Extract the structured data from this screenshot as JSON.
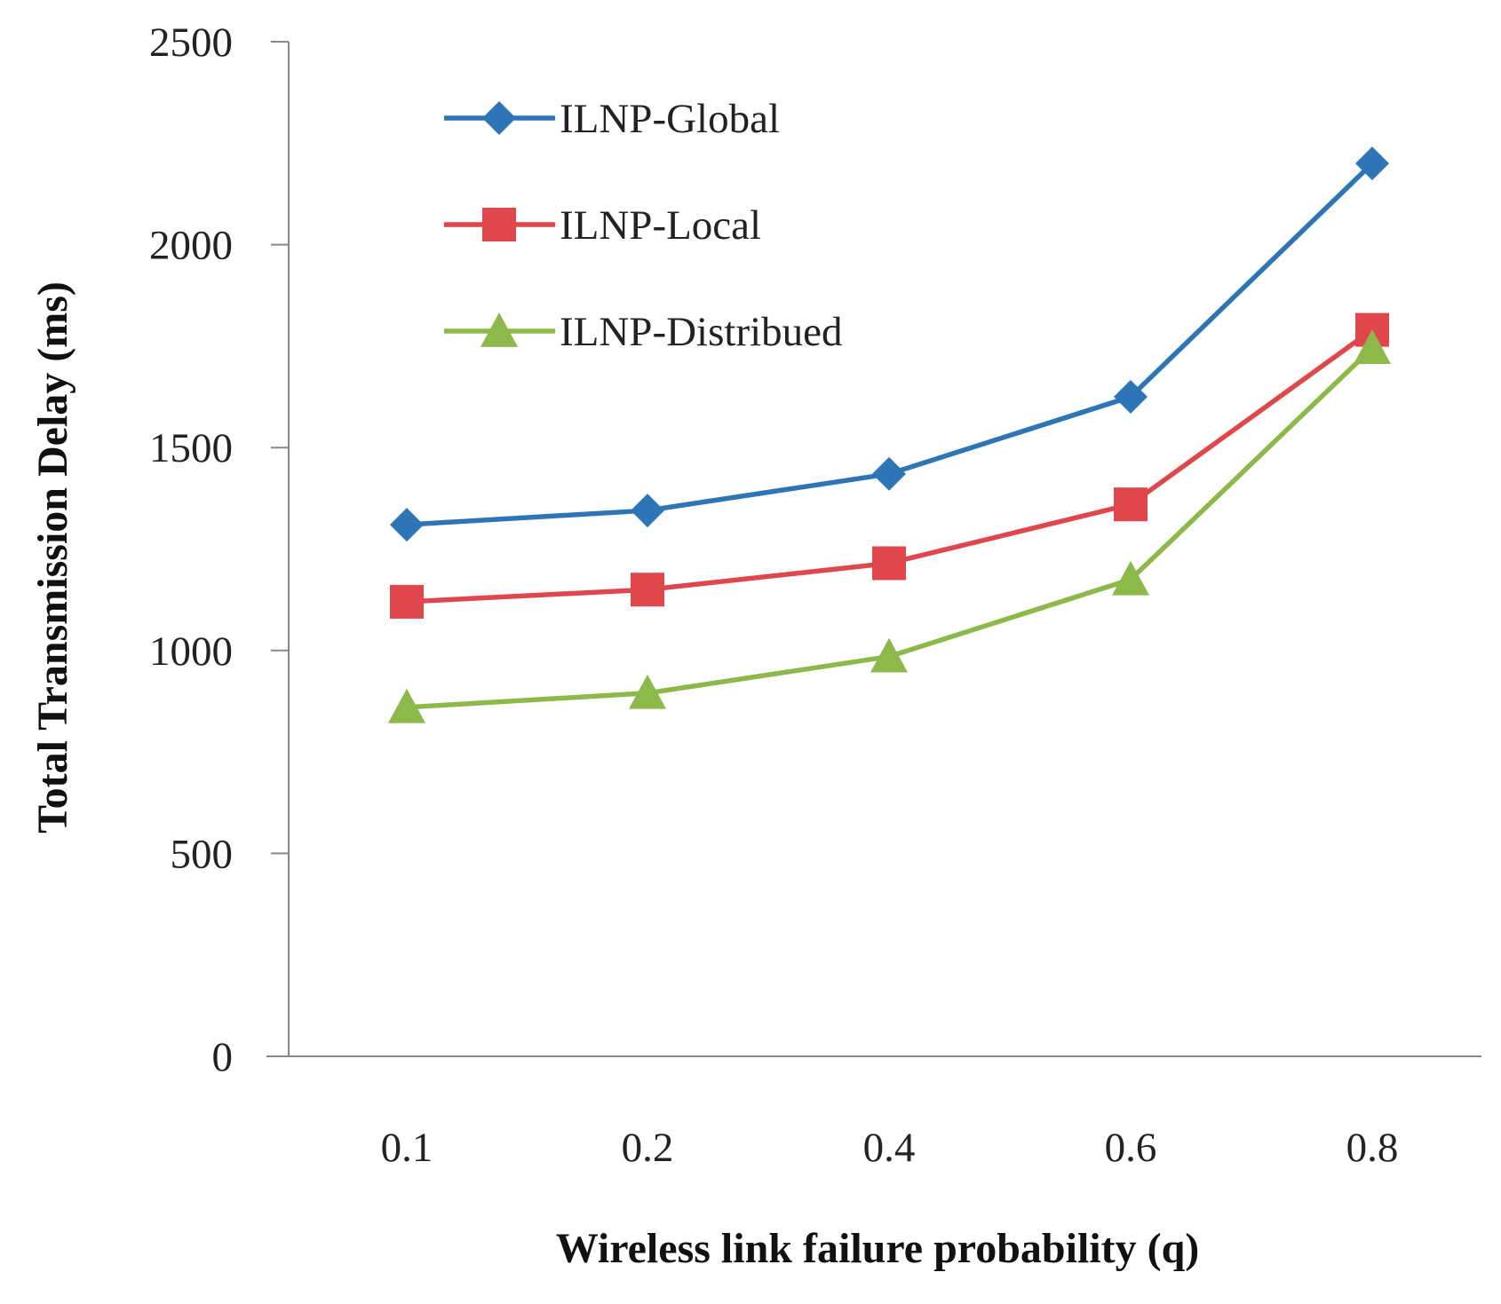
{
  "chart_data": {
    "type": "line",
    "categories": [
      "0.1",
      "0.2",
      "0.4",
      "0.6",
      "0.8"
    ],
    "xlabel": "Wireless link failure probability  (q)",
    "ylabel": "Total Transmission Delay (ms)",
    "ylim": [
      0,
      2500
    ],
    "yticks": [
      "0",
      "500",
      "1000",
      "1500",
      "2000",
      "2500"
    ],
    "grid": false,
    "legend_position": "top-left",
    "series": [
      {
        "name": "ILNP-Global",
        "color": "#2e75b6",
        "marker": "diamond",
        "values": [
          1310,
          1345,
          1435,
          1625,
          2200
        ]
      },
      {
        "name": "ILNP-Local",
        "color": "#e0474c",
        "marker": "square",
        "values": [
          1120,
          1150,
          1215,
          1360,
          1790
        ]
      },
      {
        "name": "ILNP-Distribued",
        "color": "#8db94a",
        "marker": "triangle",
        "values": [
          860,
          895,
          985,
          1175,
          1745
        ]
      }
    ]
  }
}
